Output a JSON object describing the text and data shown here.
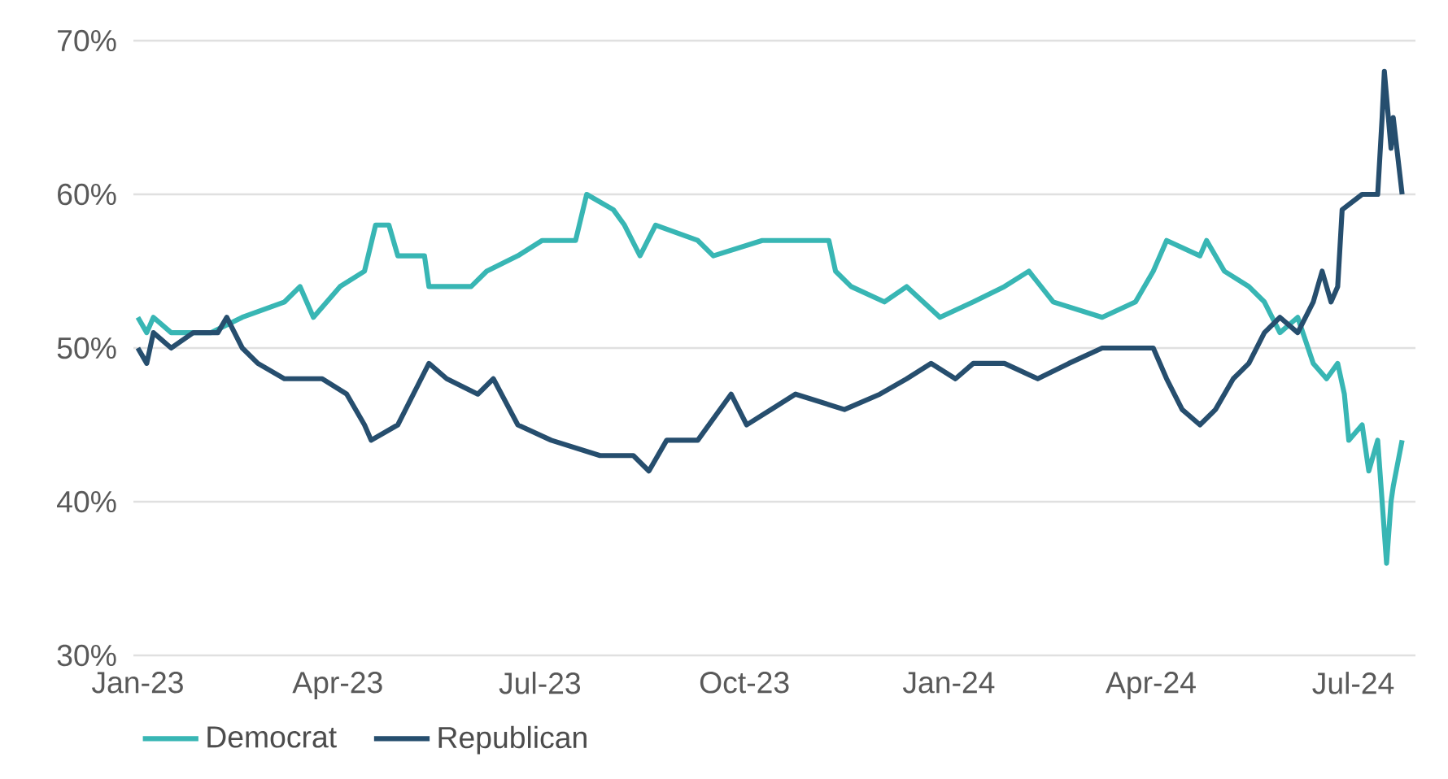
{
  "chart_data": {
    "type": "line",
    "ylim": [
      30,
      70
    ],
    "yticks": [
      {
        "value": 30,
        "label": "30%"
      },
      {
        "value": 40,
        "label": "40%"
      },
      {
        "value": 50,
        "label": "50%"
      },
      {
        "value": 60,
        "label": "60%"
      },
      {
        "value": 70,
        "label": "70%"
      }
    ],
    "xlim": [
      "2022-12-30",
      "2024-07-29"
    ],
    "xticks": [
      {
        "value": "2023-01-01",
        "label": "Jan-23"
      },
      {
        "value": "2023-04-01",
        "label": "Apr-23"
      },
      {
        "value": "2023-07-01",
        "label": "Jul-23"
      },
      {
        "value": "2023-10-01",
        "label": "Oct-23"
      },
      {
        "value": "2024-01-01",
        "label": "Jan-24"
      },
      {
        "value": "2024-04-01",
        "label": "Apr-24"
      },
      {
        "value": "2024-07-01",
        "label": "Jul-24"
      }
    ],
    "grid": "y",
    "legend": "bottom",
    "marker": "none",
    "line_style": "solid",
    "series": [
      {
        "name": "Democrat",
        "color": "#38b6b4",
        "x": [
          "2023-01-01",
          "2023-01-05",
          "2023-01-08",
          "2023-01-16",
          "2023-02-03",
          "2023-02-17",
          "2023-03-08",
          "2023-03-15",
          "2023-03-21",
          "2023-04-02",
          "2023-04-13",
          "2023-04-18",
          "2023-04-24",
          "2023-04-28",
          "2023-05-10",
          "2023-05-12",
          "2023-05-31",
          "2023-06-07",
          "2023-06-21",
          "2023-07-02",
          "2023-07-17",
          "2023-07-22",
          "2023-08-03",
          "2023-08-08",
          "2023-08-15",
          "2023-08-22",
          "2023-09-10",
          "2023-09-17",
          "2023-10-09",
          "2023-11-08",
          "2023-11-11",
          "2023-11-18",
          "2023-12-03",
          "2023-12-13",
          "2023-12-28",
          "2024-01-12",
          "2024-01-26",
          "2024-02-06",
          "2024-02-17",
          "2024-03-10",
          "2024-03-25",
          "2024-04-02",
          "2024-04-08",
          "2024-04-23",
          "2024-04-26",
          "2024-05-04",
          "2024-05-15",
          "2024-05-22",
          "2024-05-29",
          "2024-06-06",
          "2024-06-13",
          "2024-06-19",
          "2024-06-24",
          "2024-06-27",
          "2024-06-29",
          "2024-07-05",
          "2024-07-08",
          "2024-07-12",
          "2024-07-14",
          "2024-07-16",
          "2024-07-18",
          "2024-07-19",
          "2024-07-23"
        ],
        "values": [
          52,
          51,
          52,
          51,
          51,
          52,
          53,
          54,
          52,
          54,
          55,
          58,
          58,
          56,
          56,
          54,
          54,
          55,
          56,
          57,
          57,
          60,
          59,
          58,
          56,
          58,
          57,
          56,
          57,
          57,
          55,
          54,
          53,
          54,
          52,
          53,
          54,
          55,
          53,
          52,
          53,
          55,
          57,
          56,
          57,
          55,
          54,
          53,
          51,
          52,
          49,
          48,
          49,
          47,
          44,
          45,
          42,
          44,
          40,
          36,
          40,
          41,
          44
        ]
      },
      {
        "name": "Republican",
        "color": "#264e6e",
        "x": [
          "2023-01-01",
          "2023-01-05",
          "2023-01-08",
          "2023-01-16",
          "2023-01-26",
          "2023-02-06",
          "2023-02-10",
          "2023-02-17",
          "2023-02-24",
          "2023-03-08",
          "2023-03-25",
          "2023-04-05",
          "2023-04-13",
          "2023-04-16",
          "2023-04-28",
          "2023-05-05",
          "2023-05-12",
          "2023-05-20",
          "2023-06-03",
          "2023-06-10",
          "2023-06-21",
          "2023-07-06",
          "2023-07-28",
          "2023-08-12",
          "2023-08-19",
          "2023-08-27",
          "2023-09-10",
          "2023-09-25",
          "2023-10-02",
          "2023-10-13",
          "2023-10-24",
          "2023-11-15",
          "2023-12-01",
          "2023-12-13",
          "2023-12-24",
          "2024-01-04",
          "2024-01-12",
          "2024-01-26",
          "2024-02-10",
          "2024-02-24",
          "2024-03-10",
          "2024-03-25",
          "2024-04-02",
          "2024-04-08",
          "2024-04-15",
          "2024-04-23",
          "2024-04-30",
          "2024-05-08",
          "2024-05-15",
          "2024-05-22",
          "2024-05-29",
          "2024-06-06",
          "2024-06-13",
          "2024-06-17",
          "2024-06-21",
          "2024-06-24",
          "2024-06-26",
          "2024-07-05",
          "2024-07-12",
          "2024-07-14",
          "2024-07-15",
          "2024-07-18",
          "2024-07-19",
          "2024-07-23"
        ],
        "values": [
          50,
          49,
          51,
          50,
          51,
          51,
          52,
          50,
          49,
          48,
          48,
          47,
          45,
          44,
          45,
          47,
          49,
          48,
          47,
          48,
          45,
          44,
          43,
          43,
          42,
          44,
          44,
          47,
          45,
          46,
          47,
          46,
          47,
          48,
          49,
          48,
          49,
          49,
          48,
          49,
          50,
          50,
          50,
          48,
          46,
          45,
          46,
          48,
          49,
          51,
          52,
          51,
          53,
          55,
          53,
          54,
          59,
          60,
          60,
          65,
          68,
          63,
          65,
          60
        ]
      }
    ]
  }
}
